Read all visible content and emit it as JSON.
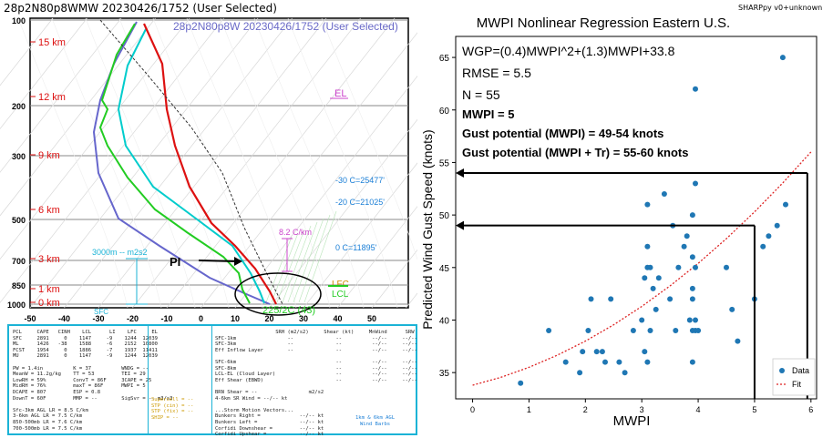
{
  "skewt": {
    "title": "28p2N80p8WMW   20230426/1752  (User Selected)",
    "overlay_title": "28p2N80p8W  20230426/1752  (User Selected)",
    "version": "SHARPpy v0+unknown",
    "pressure_labels": [
      "100",
      "200",
      "300",
      "500",
      "700",
      "850",
      "1000"
    ],
    "height_labels": [
      "15 km",
      "12 km",
      "9 km",
      "6 km",
      "3 km",
      "1 km",
      "0 km"
    ],
    "temp_labels": [
      "-50",
      "-40",
      "-30",
      "-20",
      "-10",
      "0",
      "10",
      "20",
      "30",
      "40",
      "50"
    ],
    "el_label": "EL",
    "lfc_label": "LFC",
    "lcl_label": "LCL",
    "sfc_label": "SFC",
    "lapse_label": "8.2 C/km",
    "srh_label": "3000m  -- m2s2",
    "pi_label": "PI",
    "hgz_labels": [
      "-30 C=25477'",
      "-20 C=21025'",
      "0 C=11895'"
    ],
    "hodo_label": "225/2C (43)",
    "colors": {
      "temp": "#dd1111",
      "dewpoint": "#22cc22",
      "wetbulb": "#00cccc",
      "virtual": "#6666cc",
      "parcel": "#333333",
      "el": "#cc44cc",
      "lfc": "#cc8800"
    }
  },
  "params": {
    "col1": [
      "PCL     CAPE   CINH    LCL      LI    LFC     EL",
      "SFC     2891     0    1147     -9    1244  12039",
      "ML      1426   -38    1588     -6    2152  10800",
      "FCST    1954     0    1886     -7    1937  11411",
      "MU      2891     0    1147     -9    1244  12039",
      "",
      "PW = 1.4in          K = 37          WNDG = --",
      "MeanW = 11.2g/kg    TT = 53         TEI = 29",
      "LowRH = 59%         ConvT = 86F     3CAPE = 25",
      "MidRH = 76%         maxT = 86F      MWPI = 5",
      "DCAPE = 807         ESP = 0.8",
      "DownT = 60F         MMP = --        SigSvr = -- m3/s3",
      "",
      "Sfc-3km AGL LR = 8.5 C/km",
      "3-6km AGL LR = 7.5 C/km",
      "850-500mb LR = 7.6 C/km",
      "700-500mb LR = 7.5 C/km"
    ],
    "col2": [
      "                    SRH (m2/s2)     Shear (kt)     MnWind      SRW",
      "SFC-1km                 --              --          --/--     --/--",
      "SFC-3km                 --              --          --/--     --/--",
      "Eff Inflow Layer        --              --          --/--     --/--",
      "",
      "SFC-6km                                 --          --/--     --/--",
      "SFC-8km                                 --          --/--     --/--",
      "LCL-EL (Cloud Layer)                    --          --/--     --/--",
      "Eff Shear (EBWD)                        --          --/--     --/--",
      "",
      "BRN Shear = --                 m2/s2",
      "4-6km SR Wind = --/-- kt",
      "",
      "...Storm Motion Vectors...",
      "Bunkers Right =             --/-- kt",
      "Bunkers Left =              --/-- kt",
      "Corfidi Downshear =         --/-- kt",
      "Corfidi Upshear =           --/-- kt"
    ],
    "indices": [
      "Supercell = --",
      "STP (cin) = --",
      "STP (fix) = --",
      "SHIP = --"
    ],
    "barbs_note": "1km & 6km AGL\nWind Barbs"
  },
  "regression": {
    "title": "MWPI Nonlinear Regression Eastern U.S.",
    "equation": "WGP=(0.4)MWPI^2+(1.3)MWPI+33.8",
    "rmse": "RMSE = 5.5",
    "n": "N = 55",
    "mwpi": "MWPI = 5",
    "gust1": "Gust potential (MWPI) = 49-54 knots",
    "gust2": "Gust potential (MWPI + Tr) = 55-60 knots",
    "xlabel": "MWPI",
    "ylabel": "Predicted Wind Gust Speed (knots)",
    "legend_data": "Data",
    "legend_fit": "Fit",
    "colors": {
      "data": "#1f77b4",
      "fit": "#dd2222"
    }
  },
  "chart_data": {
    "type": "scatter",
    "title": "MWPI Nonlinear Regression Eastern U.S.",
    "xlabel": "MWPI",
    "ylabel": "Predicted Wind Gust Speed (knots)",
    "xlim": [
      -0.3,
      6.1
    ],
    "ylim": [
      32.5,
      67
    ],
    "xticks": [
      0,
      1,
      2,
      3,
      4,
      5,
      6
    ],
    "yticks": [
      35,
      40,
      45,
      50,
      55,
      60,
      65
    ],
    "legend": "bottom-right",
    "grid": false,
    "series": [
      {
        "name": "Data",
        "x": [
          0.85,
          1.35,
          1.65,
          1.9,
          1.95,
          2.05,
          2.1,
          2.2,
          2.3,
          2.35,
          2.45,
          2.6,
          2.7,
          2.85,
          3.0,
          3.05,
          3.05,
          3.1,
          3.1,
          3.1,
          3.1,
          3.15,
          3.15,
          3.2,
          3.25,
          3.3,
          3.4,
          3.5,
          3.55,
          3.6,
          3.65,
          3.75,
          3.8,
          3.85,
          3.9,
          3.9,
          3.9,
          3.9,
          3.9,
          3.9,
          3.95,
          3.95,
          3.95,
          3.95,
          3.95,
          4.0,
          4.5,
          4.6,
          4.7,
          5.0,
          5.15,
          5.25,
          5.4,
          5.5,
          5.55
        ],
        "y": [
          34,
          39,
          36,
          35,
          37,
          39,
          42,
          37,
          37,
          36,
          42,
          36,
          35,
          39,
          40,
          37,
          44,
          45,
          47,
          51,
          36,
          45,
          39,
          43,
          41,
          44,
          52,
          42,
          49,
          39,
          45,
          47,
          48,
          40,
          42,
          36,
          43,
          46,
          39,
          50,
          45,
          53,
          39,
          62,
          40,
          39,
          45,
          41,
          38,
          42,
          47,
          48,
          49,
          65,
          51
        ]
      },
      {
        "name": "Fit",
        "x": [
          0,
          0.5,
          1,
          1.5,
          2,
          2.5,
          3,
          3.5,
          4,
          4.5,
          5,
          5.5,
          6
        ],
        "y": [
          33.8,
          34.55,
          35.5,
          36.65,
          38.0,
          39.55,
          41.3,
          43.25,
          45.4,
          47.75,
          50.3,
          53.05,
          56.0
        ]
      }
    ]
  }
}
